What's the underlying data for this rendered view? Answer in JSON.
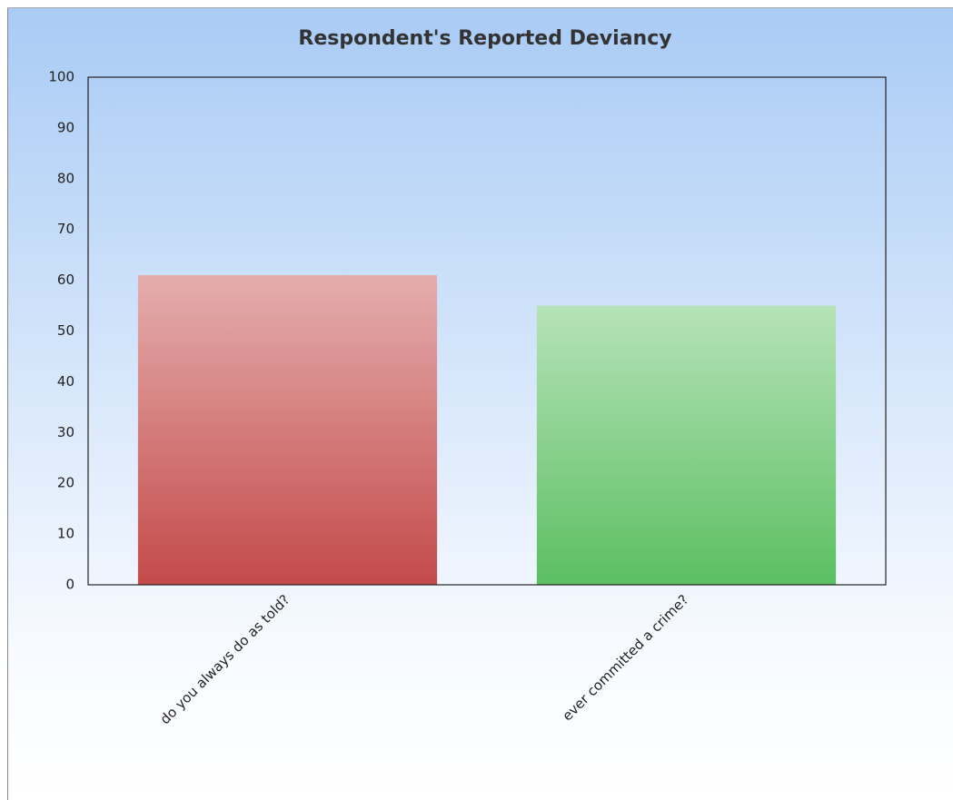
{
  "chart_data": {
    "type": "bar",
    "title": "Respondent's Reported Deviancy",
    "categories": [
      "do you always do as told?",
      "ever committed a crime?"
    ],
    "values": [
      61,
      55
    ],
    "colors": [
      "#c44a4a",
      "#5cbf62"
    ],
    "ylim": [
      0,
      100
    ],
    "yticks": [
      0,
      10,
      20,
      30,
      40,
      50,
      60,
      70,
      80,
      90,
      100
    ],
    "grid": false
  }
}
